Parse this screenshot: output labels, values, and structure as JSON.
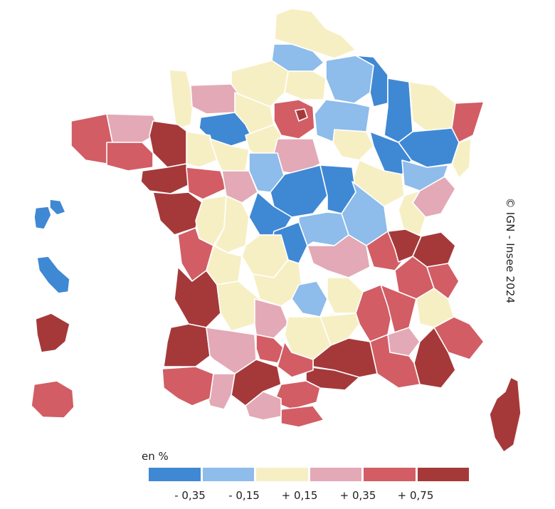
{
  "map": {
    "credit": "© IGN - Insee 2024",
    "colors": {
      "dark_blue": "#3f88d4",
      "light_blue": "#8ebceb",
      "cream": "#f7efc4",
      "pink": "#e3a9b7",
      "red": "#d25d65",
      "dark_red": "#a5393a"
    }
  },
  "legend": {
    "title": "en %",
    "classes": [
      {
        "color": "#3f88d4"
      },
      {
        "color": "#8ebceb"
      },
      {
        "color": "#f7efc4"
      },
      {
        "color": "#e3a9b7"
      },
      {
        "color": "#d25d65"
      },
      {
        "color": "#a5393a"
      }
    ],
    "ticks": [
      "- 0,35",
      "- 0,15",
      "+ 0,15",
      "+ 0,35",
      "+ 0,75"
    ]
  }
}
